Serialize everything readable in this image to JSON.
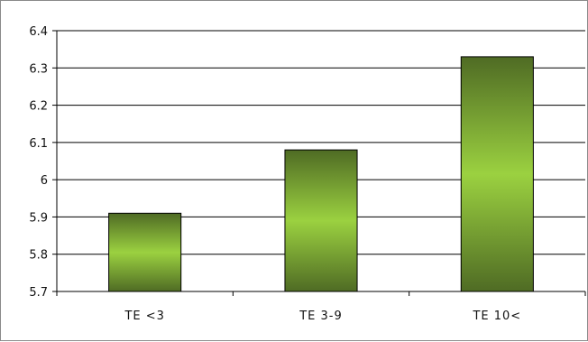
{
  "chart_data": {
    "type": "bar",
    "title": "",
    "xlabel": "",
    "ylabel": "",
    "categories": [
      "TE <3",
      "TE 3-9",
      "TE 10<"
    ],
    "values": [
      5.91,
      6.08,
      6.33
    ],
    "ylim": [
      5.7,
      6.4
    ],
    "yticks": [
      "5.7",
      "5.8",
      "5.9",
      "6",
      "6.1",
      "6.2",
      "6.3",
      "6.4"
    ],
    "grid": true,
    "legend": "none",
    "bar_gradient": {
      "edge_color": "#4f6b24",
      "center_color": "#9bd140"
    }
  }
}
